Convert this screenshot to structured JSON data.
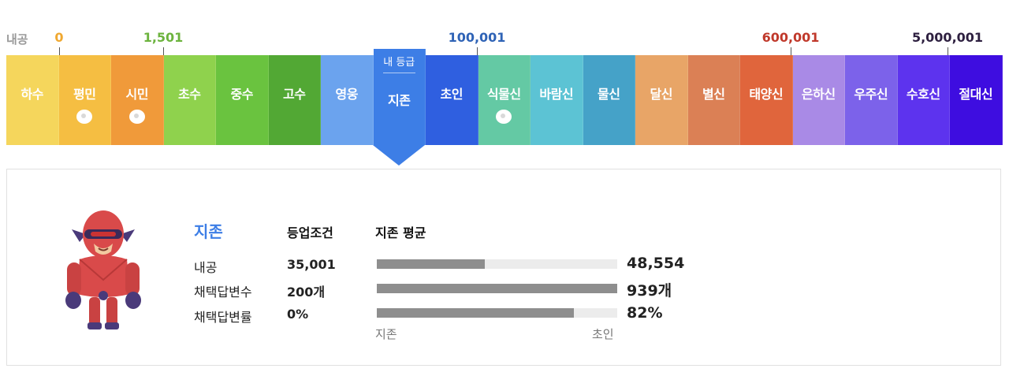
{
  "thresholds": {
    "first_label": "내공",
    "items": [
      {
        "value": "0",
        "color": "#f0a830"
      },
      {
        "value": "1,501",
        "color": "#6cb33e"
      },
      {
        "value": "100,001",
        "color": "#2f63b6"
      },
      {
        "value": "600,001",
        "color": "#c0392b"
      },
      {
        "value": "5,000,001",
        "color": "#2e2040"
      }
    ]
  },
  "grades": [
    {
      "name": "하수",
      "color": "#f5d65c",
      "seed": false
    },
    {
      "name": "평민",
      "color": "#f5be42",
      "seed": true
    },
    {
      "name": "시민",
      "color": "#f09a3a",
      "seed": true
    },
    {
      "name": "초수",
      "color": "#8fd24d",
      "seed": false
    },
    {
      "name": "중수",
      "color": "#6ac33f",
      "seed": false
    },
    {
      "name": "고수",
      "color": "#52a834",
      "seed": false
    },
    {
      "name": "영웅",
      "color": "#6ba3ee",
      "seed": false
    },
    {
      "name": "지존",
      "color": "#3d7ee6",
      "seed": false,
      "current": true
    },
    {
      "name": "초인",
      "color": "#2f5fe0",
      "seed": false
    },
    {
      "name": "식물신",
      "color": "#64c9a4",
      "seed": true
    },
    {
      "name": "바람신",
      "color": "#5cc3d4",
      "seed": false
    },
    {
      "name": "물신",
      "color": "#45a2c8",
      "seed": false
    },
    {
      "name": "달신",
      "color": "#e8a567",
      "seed": false
    },
    {
      "name": "별신",
      "color": "#db8055",
      "seed": false
    },
    {
      "name": "태양신",
      "color": "#e0653c",
      "seed": false
    },
    {
      "name": "은하신",
      "color": "#a98ae6",
      "seed": false
    },
    {
      "name": "우주신",
      "color": "#7c62ea",
      "seed": false
    },
    {
      "name": "수호신",
      "color": "#5d33ee",
      "seed": false
    },
    {
      "name": "절대신",
      "color": "#3e0de0",
      "seed": false
    }
  ],
  "my_grade_label": "내 등급",
  "panel": {
    "grade_name": "지존",
    "requirement_header": "등업조건",
    "average_header": "지존 평균",
    "rows": [
      {
        "label": "내공",
        "requirement": "35,001",
        "average": "48,554",
        "bar_fraction": 0.45
      },
      {
        "label": "채택답변수",
        "requirement": "200개",
        "average": "939개",
        "bar_fraction": 1.0
      },
      {
        "label": "채택답변률",
        "requirement": "0%",
        "average": "82%",
        "bar_fraction": 0.82
      }
    ],
    "axis_start": "지존",
    "axis_end": "초인"
  }
}
